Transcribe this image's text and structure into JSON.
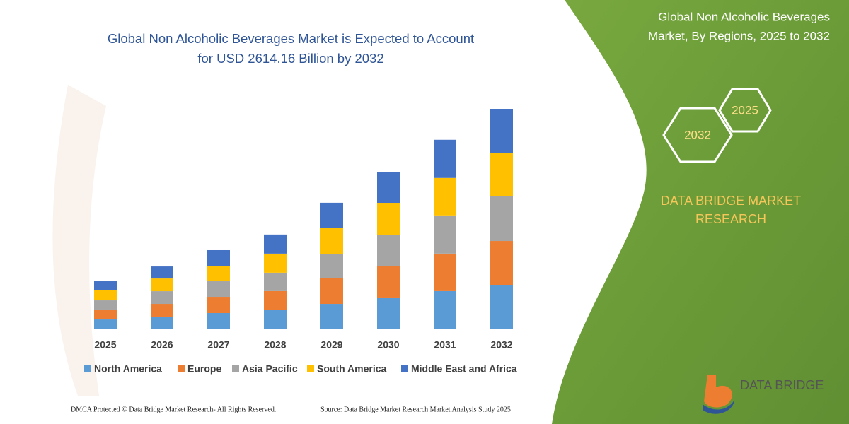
{
  "chart_data": {
    "type": "stacked_bar",
    "title": [
      "Global Non Alcoholic Beverages Market is Expected to Account",
      "for USD 2614.16 Billion by 2032"
    ],
    "categories": [
      "2025",
      "2026",
      "2027",
      "2028",
      "2029",
      "2030",
      "2031",
      "2032"
    ],
    "series": [
      {
        "name": "North America",
        "color": "#5b9bd5",
        "values": [
          109,
          143,
          185,
          219,
          294,
          370,
          446,
          521
        ]
      },
      {
        "name": "Europe",
        "color": "#ed7d31",
        "values": [
          118,
          151,
          193,
          227,
          303,
          370,
          446,
          521
        ]
      },
      {
        "name": "Asia Pacific",
        "color": "#a5a5a5",
        "values": [
          109,
          151,
          185,
          219,
          294,
          378,
          454,
          530
        ]
      },
      {
        "name": "South America",
        "color": "#ffc000",
        "values": [
          118,
          151,
          185,
          227,
          303,
          378,
          446,
          521
        ]
      },
      {
        "name": "Middle East and Africa",
        "color": "#4472c4",
        "values": [
          109,
          143,
          185,
          227,
          303,
          370,
          454,
          521
        ]
      }
    ]
  },
  "panel": {
    "title": [
      "Global Non Alcoholic Beverages",
      "Market, By Regions, 2025 to 2032"
    ],
    "hex_small": "2025",
    "hex_large": "2032",
    "brand": [
      "DATA BRIDGE MARKET",
      "RESEARCH"
    ],
    "logo": "DATA BRIDGE"
  },
  "footer": {
    "dmca": "DMCA Protected © Data Bridge Market Research-  All Rights Reserved.",
    "source": "Source: Data Bridge Market Research  Market Analysis Study 2025"
  }
}
